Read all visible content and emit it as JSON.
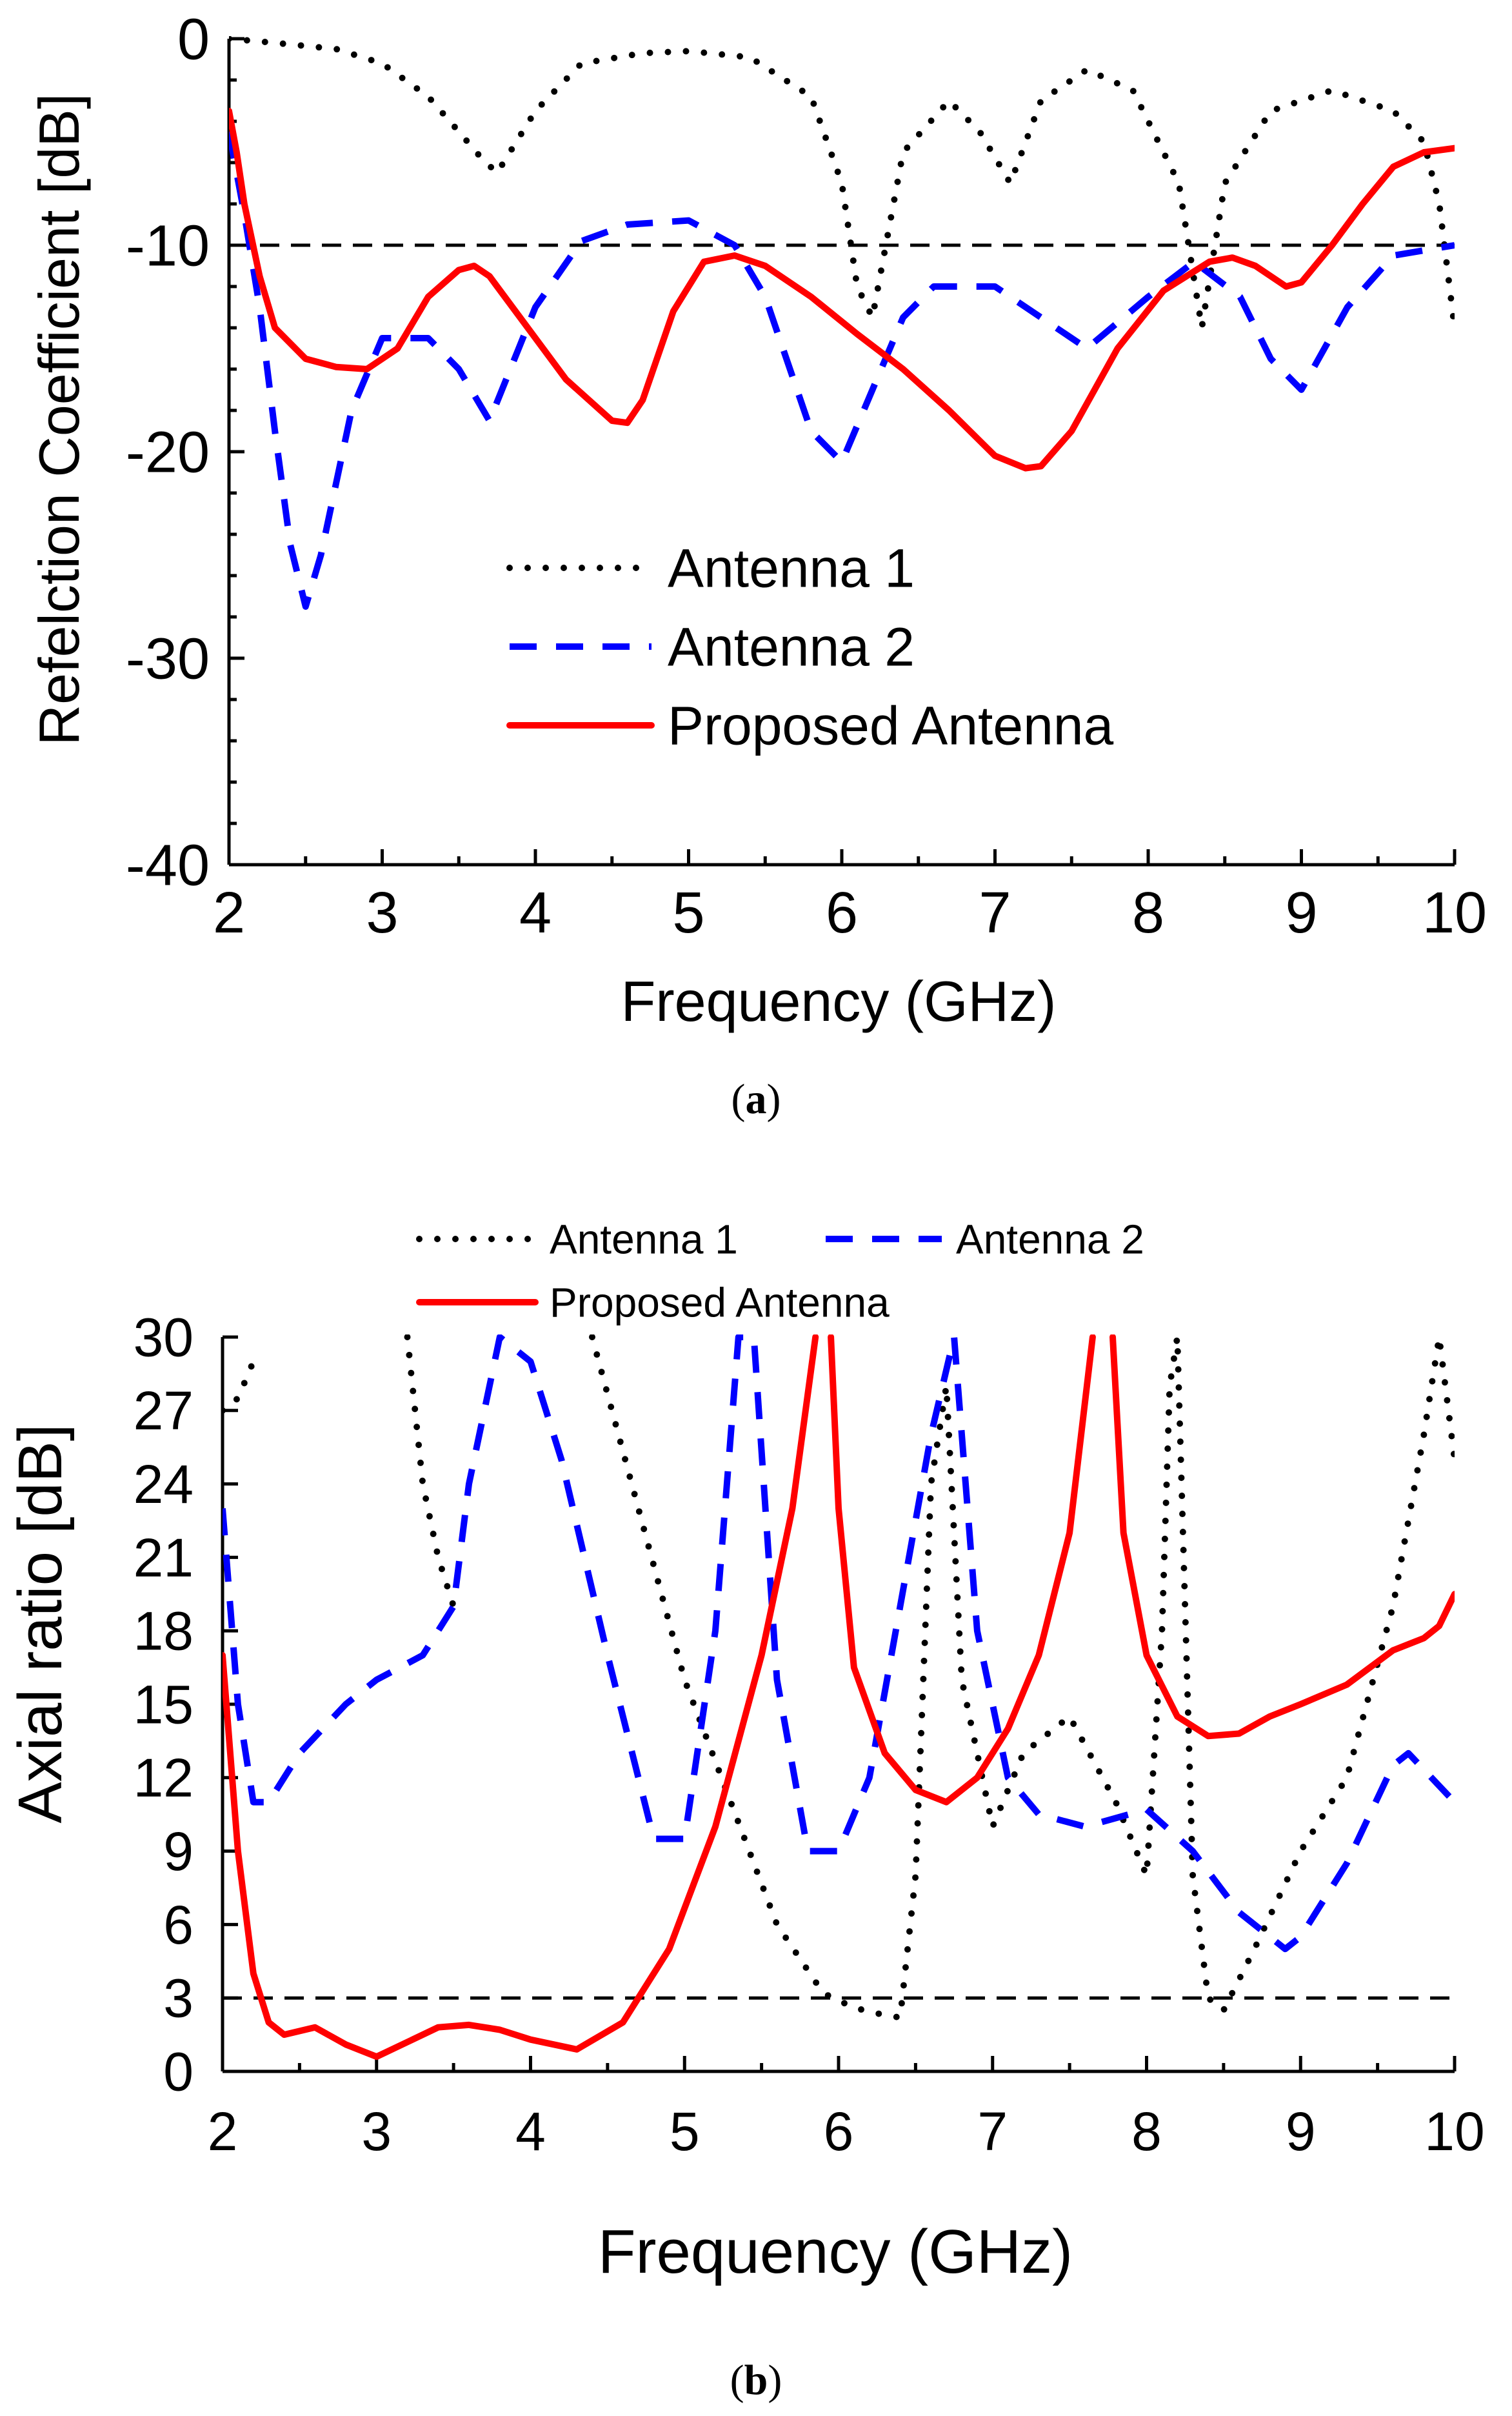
{
  "chart_data": [
    {
      "type": "line",
      "panel": "a",
      "caption_letter": "a",
      "xlabel": "Frequency (GHz)",
      "ylabel": "Refelction Coefficient [dB]",
      "xlim": [
        2,
        10
      ],
      "ylim": [
        -40,
        0
      ],
      "xticks": [
        2,
        3,
        4,
        5,
        6,
        7,
        8,
        9,
        10
      ],
      "yticks": [
        -40,
        -30,
        -20,
        -10,
        0
      ],
      "legend_position": "center",
      "reference_line": {
        "y": -10,
        "style": "dashed"
      },
      "series": [
        {
          "name": "Antenna 1",
          "style": "dotted",
          "color": "#000000",
          "x": [
            2.0,
            2.3,
            2.7,
            3.0,
            3.3,
            3.5,
            3.65,
            3.75,
            4.0,
            4.3,
            4.7,
            5.0,
            5.4,
            5.8,
            6.0,
            6.1,
            6.2,
            6.4,
            6.7,
            6.9,
            7.1,
            7.3,
            7.6,
            7.9,
            8.2,
            8.35,
            8.5,
            8.8,
            9.2,
            9.6,
            9.8,
            9.9,
            10.0
          ],
          "y": [
            0,
            -0.2,
            -0.5,
            -1.2,
            -2.8,
            -4.5,
            -5.8,
            -6.5,
            -3.5,
            -1.2,
            -0.7,
            -0.6,
            -0.9,
            -2.8,
            -7,
            -12,
            -13.5,
            -5.5,
            -3.0,
            -4.5,
            -7.0,
            -3.0,
            -1.5,
            -2.5,
            -7.0,
            -14.0,
            -7.0,
            -3.5,
            -2.5,
            -3.5,
            -5.0,
            -8.0,
            -14.0
          ]
        },
        {
          "name": "Antenna 2",
          "style": "dashed",
          "color": "#0000ff",
          "x": [
            2.0,
            2.1,
            2.2,
            2.3,
            2.4,
            2.5,
            2.6,
            2.8,
            3.0,
            3.3,
            3.5,
            3.7,
            4.0,
            4.3,
            4.6,
            5.0,
            5.3,
            5.5,
            5.8,
            6.0,
            6.2,
            6.4,
            6.6,
            7.0,
            7.3,
            7.6,
            8.0,
            8.3,
            8.6,
            8.8,
            9.0,
            9.3,
            9.6,
            10.0
          ],
          "y": [
            -4.5,
            -8.5,
            -13,
            -19,
            -24.5,
            -27.5,
            -25,
            -18,
            -14.5,
            -14.5,
            -16,
            -18.5,
            -13,
            -9.8,
            -9,
            -8.8,
            -10,
            -12.5,
            -19,
            -20.5,
            -17,
            -13.5,
            -12,
            -12,
            -13.5,
            -15,
            -12.5,
            -10.8,
            -12.5,
            -15.5,
            -17,
            -13,
            -10.5,
            -10
          ]
        },
        {
          "name": "Proposed Antenna",
          "style": "solid",
          "color": "#ff0000",
          "x": [
            2.0,
            2.05,
            2.1,
            2.2,
            2.3,
            2.5,
            2.7,
            2.9,
            3.1,
            3.3,
            3.5,
            3.6,
            3.7,
            3.9,
            4.2,
            4.5,
            4.6,
            4.7,
            4.9,
            5.1,
            5.3,
            5.5,
            5.8,
            6.1,
            6.4,
            6.7,
            7.0,
            7.2,
            7.3,
            7.5,
            7.8,
            8.1,
            8.4,
            8.55,
            8.7,
            8.9,
            9.0,
            9.2,
            9.4,
            9.6,
            9.8,
            10.0
          ],
          "y": [
            -3.5,
            -5.5,
            -8,
            -11.5,
            -14,
            -15.5,
            -15.9,
            -16,
            -15,
            -12.5,
            -11.2,
            -11,
            -11.5,
            -13.5,
            -16.5,
            -18.5,
            -18.6,
            -17.5,
            -13.2,
            -10.8,
            -10.5,
            -11,
            -12.5,
            -14.3,
            -16,
            -18,
            -20.2,
            -20.8,
            -20.7,
            -19,
            -15,
            -12.2,
            -10.8,
            -10.6,
            -11,
            -12,
            -11.8,
            -10,
            -8,
            -6.2,
            -5.5,
            -5.3
          ]
        }
      ]
    },
    {
      "type": "line",
      "panel": "b",
      "caption_letter": "b",
      "xlabel": "Frequency (GHz)",
      "ylabel": "Axial ratio [dB]",
      "xlim": [
        2,
        10
      ],
      "ylim": [
        0,
        30
      ],
      "xticks": [
        2,
        3,
        4,
        5,
        6,
        7,
        8,
        9,
        10
      ],
      "yticks": [
        0,
        3,
        6,
        9,
        12,
        15,
        18,
        21,
        24,
        27,
        30
      ],
      "legend_position": "top",
      "reference_line": {
        "y": 3,
        "style": "dashed"
      },
      "series": [
        {
          "name": "Antenna 1",
          "style": "dotted",
          "color": "#000000",
          "segments": [
            {
              "x": [
                2.0,
                2.1,
                2.2
              ],
              "y": [
                27,
                27.5,
                29
              ]
            },
            {
              "x": [
                3.2,
                3.3,
                3.4,
                3.5
              ],
              "y": [
                30,
                24,
                21,
                19
              ]
            },
            {
              "x": [
                4.4,
                4.7,
                5.0,
                5.3,
                5.6,
                5.9,
                6.1,
                6.3,
                6.4,
                6.5,
                6.6,
                6.7,
                6.8,
                7.0,
                7.2,
                7.5,
                7.8,
                8.0,
                8.1,
                8.15,
                8.2,
                8.3,
                8.4,
                8.5,
                8.7,
                9.0,
                9.3,
                9.6,
                9.8,
                9.9,
                10.0
              ],
              "y": [
                30,
                23,
                16,
                11,
                6,
                3.2,
                2.6,
                2.3,
                2.2,
                8,
                24,
                28,
                16,
                10,
                13,
                14.5,
                11,
                8,
                18,
                28,
                30,
                8,
                3,
                2.5,
                5,
                9,
                12,
                19,
                26,
                30,
                25
              ]
            }
          ]
        },
        {
          "name": "Antenna 2",
          "style": "dashed",
          "color": "#0000ff",
          "x": [
            2.0,
            2.1,
            2.2,
            2.3,
            2.5,
            2.8,
            3.0,
            3.3,
            3.5,
            3.6,
            3.8,
            4.0,
            4.2,
            4.5,
            4.8,
            5.0,
            5.2,
            5.35,
            5.45,
            5.6,
            5.8,
            6.0,
            6.2,
            6.4,
            6.6,
            6.75,
            6.9,
            7.1,
            7.3,
            7.6,
            8.0,
            8.3,
            8.6,
            8.9,
            9.0,
            9.3,
            9.6,
            9.7,
            10.0
          ],
          "y": [
            23,
            15,
            11,
            11,
            13,
            15,
            16,
            17,
            19,
            24,
            30,
            29,
            25,
            17,
            9.5,
            9.5,
            18,
            30,
            30,
            16,
            9,
            9,
            12,
            19,
            26,
            30,
            18,
            12,
            10.5,
            10,
            10.7,
            9,
            6.5,
            5,
            5.5,
            8.5,
            12.5,
            13,
            11
          ]
        },
        {
          "name": "Proposed Antenna",
          "style": "solid",
          "color": "#ff0000",
          "segments": [
            {
              "x": [
                2.0,
                2.1,
                2.2,
                2.3,
                2.4,
                2.6,
                2.8,
                3.0,
                3.2,
                3.4,
                3.6,
                3.8,
                4.0,
                4.3,
                4.6,
                4.9,
                5.2,
                5.5,
                5.7,
                5.85
              ],
              "y": [
                17,
                9,
                4,
                2,
                1.5,
                1.8,
                1.1,
                0.6,
                1.2,
                1.8,
                1.9,
                1.7,
                1.3,
                0.9,
                2,
                5,
                10,
                17,
                23,
                30
              ]
            },
            {
              "x": [
                5.95,
                6.0,
                6.1,
                6.3,
                6.5,
                6.7,
                6.9,
                7.1,
                7.3,
                7.5,
                7.65
              ],
              "y": [
                30,
                23,
                16.5,
                13,
                11.5,
                11,
                12,
                14,
                17,
                22,
                30
              ]
            },
            {
              "x": [
                7.78,
                7.85,
                8.0,
                8.2,
                8.4,
                8.6,
                8.8,
                9.0,
                9.3,
                9.6,
                9.8,
                9.9,
                10.0
              ],
              "y": [
                30,
                22,
                17,
                14.5,
                13.7,
                13.8,
                14.5,
                15,
                15.8,
                17.2,
                17.7,
                18.2,
                19.5
              ]
            }
          ]
        }
      ]
    }
  ]
}
